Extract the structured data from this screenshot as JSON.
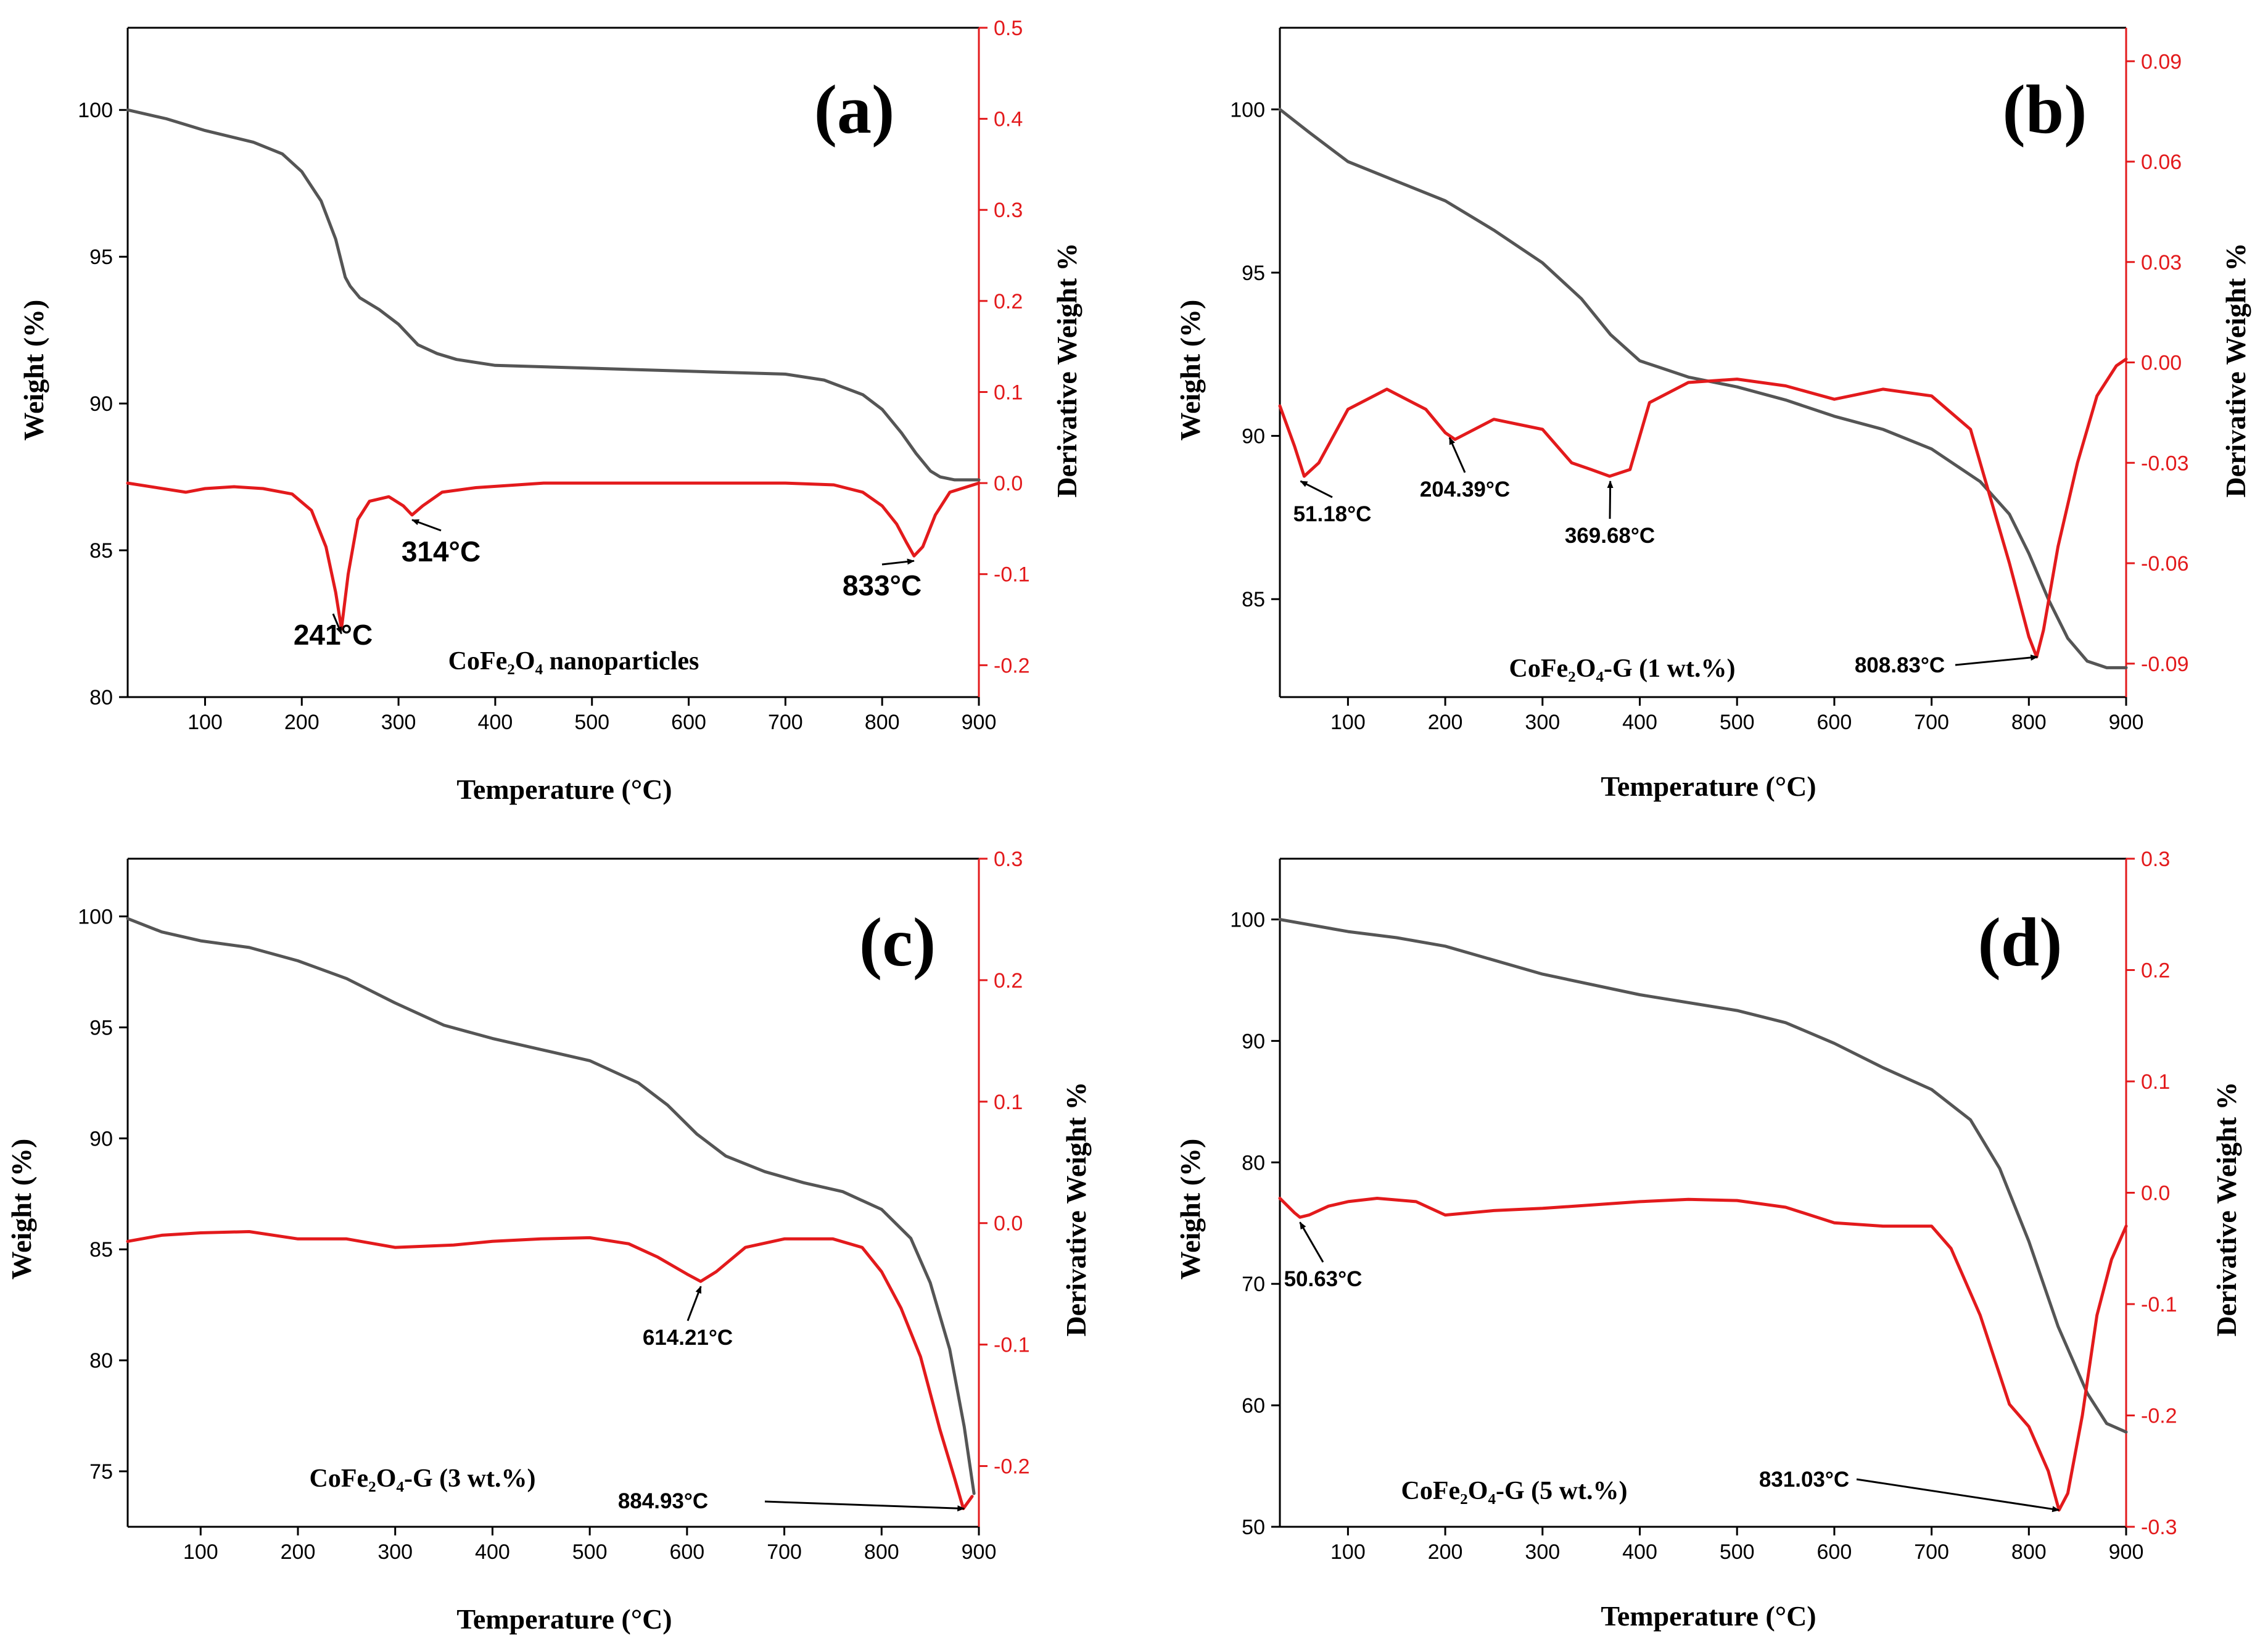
{
  "colors": {
    "tga": "#555555",
    "dtg": "#e31a1c",
    "axis": "#000000"
  },
  "chart_data": [
    {
      "id": "a",
      "type": "line",
      "panel_label": "(a)",
      "sample_name": "CoFe₂O₄ nanoparticles",
      "xlabel": "Temperature (°C)",
      "ylabel": "Weight (%)",
      "y2label": "Derivative Weight %",
      "xlim": [
        20,
        900
      ],
      "xticks": [
        100,
        200,
        300,
        400,
        500,
        600,
        700,
        800,
        900
      ],
      "ylim": [
        80,
        102.8
      ],
      "yticks": [
        80,
        85,
        90,
        95,
        100
      ],
      "y2lim": [
        -0.235,
        0.5
      ],
      "y2ticks": [
        -0.2,
        -0.1,
        0.0,
        0.1,
        0.2,
        0.3,
        0.4,
        0.5
      ],
      "y2ticklabels": [
        "-0.2",
        "-0.1",
        "0.0",
        "0.1",
        "0.2",
        "0.3",
        "0.4",
        "0.5"
      ],
      "series": [
        {
          "name": "Weight (%)",
          "axis": "left",
          "color": "#555555",
          "x": [
            20,
            60,
            100,
            150,
            180,
            200,
            220,
            235,
            245,
            250,
            260,
            280,
            300,
            320,
            340,
            360,
            400,
            500,
            600,
            700,
            740,
            780,
            800,
            820,
            835,
            850,
            860,
            875,
            900
          ],
          "y": [
            100.0,
            99.7,
            99.3,
            98.9,
            98.5,
            97.9,
            96.9,
            95.6,
            94.3,
            94.0,
            93.6,
            93.2,
            92.7,
            92.0,
            91.7,
            91.5,
            91.3,
            91.2,
            91.1,
            91.0,
            90.8,
            90.3,
            89.8,
            89.0,
            88.3,
            87.7,
            87.5,
            87.4,
            87.4
          ]
        },
        {
          "name": "Derivative Weight %",
          "axis": "right",
          "color": "#e31a1c",
          "x": [
            20,
            80,
            100,
            130,
            160,
            190,
            210,
            225,
            235,
            241,
            248,
            258,
            270,
            290,
            305,
            314,
            325,
            345,
            380,
            450,
            600,
            700,
            750,
            780,
            800,
            815,
            825,
            833,
            842,
            855,
            870,
            900
          ],
          "y": [
            0.0,
            -0.01,
            -0.006,
            -0.004,
            -0.006,
            -0.012,
            -0.03,
            -0.07,
            -0.12,
            -0.16,
            -0.1,
            -0.04,
            -0.02,
            -0.015,
            -0.025,
            -0.035,
            -0.025,
            -0.01,
            -0.005,
            0.0,
            0.0,
            0.0,
            -0.002,
            -0.01,
            -0.025,
            -0.045,
            -0.065,
            -0.08,
            -0.07,
            -0.035,
            -0.01,
            0.0
          ]
        }
      ],
      "annotations": [
        {
          "text": "241°C",
          "x": 241,
          "y2": -0.16
        },
        {
          "text": "314°C",
          "x": 314,
          "y2": -0.035
        },
        {
          "text": "833°C",
          "x": 833,
          "y2": -0.08
        }
      ]
    },
    {
      "id": "b",
      "type": "line",
      "panel_label": "(b)",
      "sample_name": "CoFe₂O₄-G (1 wt.%)",
      "xlabel": "Temperature (°C)",
      "ylabel": "Weight (%)",
      "y2label": "Derivative Weight %",
      "xlim": [
        30,
        900
      ],
      "xticks": [
        100,
        200,
        300,
        400,
        500,
        600,
        700,
        800,
        900
      ],
      "ylim": [
        82,
        102.5
      ],
      "yticks": [
        85,
        90,
        95,
        100
      ],
      "y2lim": [
        -0.1,
        0.1
      ],
      "y2ticks": [
        -0.09,
        -0.06,
        -0.03,
        0.0,
        0.03,
        0.06,
        0.09
      ],
      "y2ticklabels": [
        "-0.09",
        "-0.06",
        "-0.03",
        "0.00",
        "0.03",
        "0.06",
        "0.09"
      ],
      "series": [
        {
          "name": "Weight (%)",
          "axis": "left",
          "color": "#555555",
          "x": [
            30,
            60,
            100,
            150,
            200,
            250,
            300,
            340,
            370,
            400,
            420,
            450,
            500,
            550,
            600,
            650,
            700,
            750,
            780,
            800,
            820,
            840,
            860,
            880,
            900
          ],
          "y": [
            100.0,
            99.3,
            98.4,
            97.8,
            97.2,
            96.3,
            95.3,
            94.2,
            93.1,
            92.3,
            92.1,
            91.8,
            91.5,
            91.1,
            90.6,
            90.2,
            89.6,
            88.6,
            87.6,
            86.4,
            85.0,
            83.8,
            83.1,
            82.9,
            82.9
          ]
        },
        {
          "name": "Derivative Weight %",
          "axis": "right",
          "color": "#e31a1c",
          "x": [
            30,
            45,
            55,
            70,
            100,
            140,
            180,
            200,
            210,
            250,
            300,
            330,
            350,
            369,
            390,
            410,
            450,
            500,
            550,
            600,
            650,
            700,
            740,
            760,
            780,
            800,
            808,
            815,
            830,
            850,
            870,
            890,
            900
          ],
          "y": [
            -0.013,
            -0.025,
            -0.034,
            -0.03,
            -0.014,
            -0.008,
            -0.014,
            -0.021,
            -0.023,
            -0.017,
            -0.02,
            -0.03,
            -0.032,
            -0.034,
            -0.032,
            -0.012,
            -0.006,
            -0.005,
            -0.007,
            -0.011,
            -0.008,
            -0.01,
            -0.02,
            -0.04,
            -0.06,
            -0.082,
            -0.088,
            -0.08,
            -0.055,
            -0.03,
            -0.01,
            -0.001,
            0.001
          ]
        }
      ],
      "annotations": [
        {
          "text": "51.18°C",
          "x": 51.18,
          "y2": -0.034
        },
        {
          "text": "204.39°C",
          "x": 204.39,
          "y2": -0.021
        },
        {
          "text": "369.68°C",
          "x": 369.68,
          "y2": -0.034
        },
        {
          "text": "808.83°C",
          "x": 808.83,
          "y2": -0.088
        }
      ]
    },
    {
      "id": "c",
      "type": "line",
      "panel_label": "(c)",
      "sample_name": "CoFe₂O₄-G (3 wt.%)",
      "xlabel": "Temperature (°C)",
      "ylabel": "Weight (%)",
      "y2label": "Derivative Weight %",
      "xlim": [
        25,
        900
      ],
      "xticks": [
        100,
        200,
        300,
        400,
        500,
        600,
        700,
        800,
        900
      ],
      "ylim": [
        72.5,
        102.6
      ],
      "yticks": [
        75,
        80,
        85,
        90,
        95,
        100
      ],
      "y2lim": [
        -0.25,
        0.3
      ],
      "y2ticks": [
        -0.2,
        -0.1,
        0.0,
        0.1,
        0.2,
        0.3
      ],
      "y2ticklabels": [
        "-0.2",
        "-0.1",
        "0.0",
        "0.1",
        "0.2",
        "0.3"
      ],
      "series": [
        {
          "name": "Weight (%)",
          "axis": "left",
          "color": "#555555",
          "x": [
            25,
            60,
            100,
            150,
            200,
            250,
            300,
            350,
            400,
            450,
            500,
            550,
            580,
            610,
            640,
            680,
            720,
            760,
            800,
            830,
            850,
            870,
            885,
            895
          ],
          "y": [
            99.9,
            99.3,
            98.9,
            98.6,
            98.0,
            97.2,
            96.1,
            95.1,
            94.5,
            94.0,
            93.5,
            92.5,
            91.5,
            90.2,
            89.2,
            88.5,
            88.0,
            87.6,
            86.8,
            85.5,
            83.5,
            80.5,
            77.0,
            74.0
          ]
        },
        {
          "name": "Derivative Weight %",
          "axis": "right",
          "color": "#e31a1c",
          "x": [
            25,
            60,
            100,
            150,
            200,
            250,
            300,
            360,
            400,
            450,
            500,
            540,
            570,
            600,
            614,
            630,
            660,
            700,
            750,
            780,
            800,
            820,
            840,
            860,
            875,
            884,
            893
          ],
          "y": [
            -0.015,
            -0.01,
            -0.008,
            -0.007,
            -0.013,
            -0.013,
            -0.02,
            -0.018,
            -0.015,
            -0.013,
            -0.012,
            -0.017,
            -0.028,
            -0.042,
            -0.048,
            -0.04,
            -0.02,
            -0.013,
            -0.013,
            -0.02,
            -0.04,
            -0.07,
            -0.11,
            -0.17,
            -0.21,
            -0.235,
            -0.225
          ]
        }
      ],
      "annotations": [
        {
          "text": "614.21°C",
          "x": 614.21,
          "y2": -0.048
        },
        {
          "text": "884.93°C",
          "x": 884.93,
          "y2": -0.235
        }
      ]
    },
    {
      "id": "d",
      "type": "line",
      "panel_label": "(d)",
      "sample_name": "CoFe₂O₄-G (5 wt.%)",
      "xlabel": "Temperature (°C)",
      "ylabel": "Weight (%)",
      "y2label": "Derivative Weight %",
      "xlim": [
        30,
        900
      ],
      "xticks": [
        100,
        200,
        300,
        400,
        500,
        600,
        700,
        800,
        900
      ],
      "ylim": [
        50,
        105
      ],
      "yticks": [
        50,
        60,
        70,
        80,
        90,
        100
      ],
      "y2lim": [
        -0.3,
        0.3
      ],
      "y2ticks": [
        -0.3,
        -0.2,
        -0.1,
        0.0,
        0.1,
        0.2,
        0.3
      ],
      "y2ticklabels": [
        "-0.3",
        "-0.2",
        "-0.1",
        "0.0",
        "0.1",
        "0.2",
        "0.3"
      ],
      "series": [
        {
          "name": "Weight (%)",
          "axis": "left",
          "color": "#555555",
          "x": [
            30,
            100,
            150,
            200,
            300,
            400,
            500,
            550,
            600,
            650,
            700,
            740,
            770,
            800,
            830,
            860,
            880,
            900
          ],
          "y": [
            100.0,
            99.0,
            98.5,
            97.8,
            95.5,
            93.8,
            92.5,
            91.5,
            89.8,
            87.8,
            86.0,
            83.5,
            79.5,
            73.5,
            66.5,
            61.0,
            58.5,
            57.8
          ]
        },
        {
          "name": "Derivative Weight %",
          "axis": "right",
          "color": "#e31a1c",
          "x": [
            30,
            45,
            50.6,
            60,
            80,
            100,
            130,
            170,
            200,
            250,
            300,
            350,
            400,
            450,
            500,
            550,
            600,
            650,
            700,
            720,
            750,
            780,
            800,
            820,
            831,
            840,
            855,
            870,
            885,
            900
          ],
          "y": [
            -0.005,
            -0.018,
            -0.022,
            -0.02,
            -0.012,
            -0.008,
            -0.005,
            -0.008,
            -0.02,
            -0.016,
            -0.014,
            -0.011,
            -0.008,
            -0.006,
            -0.007,
            -0.013,
            -0.027,
            -0.03,
            -0.03,
            -0.05,
            -0.11,
            -0.19,
            -0.21,
            -0.25,
            -0.285,
            -0.27,
            -0.2,
            -0.11,
            -0.06,
            -0.03
          ]
        }
      ],
      "annotations": [
        {
          "text": "50.63°C",
          "x": 50.63,
          "y2": -0.022
        },
        {
          "text": "831.03°C",
          "x": 831.03,
          "y2": -0.285
        }
      ]
    }
  ]
}
